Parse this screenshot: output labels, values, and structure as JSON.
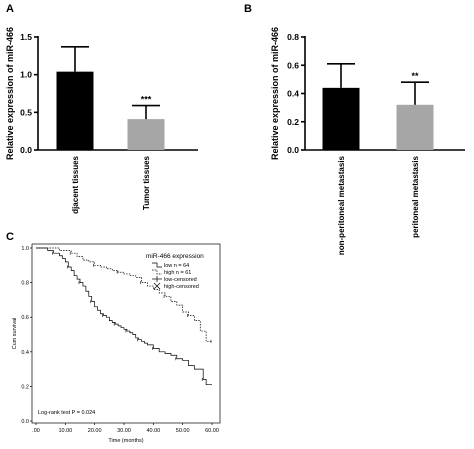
{
  "panel_labels": [
    "A",
    "B",
    "C"
  ],
  "chart_data": [
    {
      "type": "bar",
      "panel": "A",
      "ylabel": "Relative expression of miR-466",
      "categories": [
        "djacent tissues",
        "Tumor tissues"
      ],
      "values": [
        1.04,
        0.41
      ],
      "errors": [
        0.33,
        0.18
      ],
      "colors": [
        "#000000",
        "#a6a6a6"
      ],
      "ylim": [
        0,
        1.5
      ],
      "yticks": [
        "0.0",
        "0.5",
        "1.0",
        "1.5"
      ],
      "annotations": [
        "",
        "***"
      ]
    },
    {
      "type": "bar",
      "panel": "B",
      "ylabel": "Relative expression of miR-466",
      "categories": [
        "non-peritoneal metastasis",
        "peritoneal metastasis"
      ],
      "values": [
        0.44,
        0.32
      ],
      "errors": [
        0.17,
        0.16
      ],
      "colors": [
        "#000000",
        "#a6a6a6"
      ],
      "ylim": [
        0,
        0.8
      ],
      "yticks": [
        "0.0",
        "0.2",
        "0.4",
        "0.6",
        "0.8"
      ],
      "annotations": [
        "",
        "**"
      ]
    },
    {
      "type": "line",
      "panel": "C",
      "xlabel": "Time (months)",
      "ylabel": "Cum survival",
      "xlim": [
        0,
        60
      ],
      "ylim": [
        0,
        1.0
      ],
      "xticks": [
        ".00",
        "10.00",
        "20.00",
        "30.00",
        "40.00",
        "50.00",
        "60.00"
      ],
      "yticks": [
        "0.0",
        "0.2",
        "0.4",
        "0.6",
        "0.8",
        "1.0"
      ],
      "legend_title": "miR-466 expression",
      "legend_placement": "top-right",
      "legend_entries": [
        "low n = 64",
        "high n = 61",
        "low-censored",
        "high-censored"
      ],
      "annotation": "Log-rank test P = 0.024",
      "series": [
        {
          "name": "low n = 64",
          "style": "solid",
          "x": [
            0,
            4,
            6,
            8,
            9,
            10,
            11,
            12,
            13,
            14,
            15,
            16,
            17,
            18,
            19,
            20,
            21,
            22,
            23,
            24,
            25,
            26,
            27,
            28,
            29,
            30,
            31,
            32,
            33,
            34,
            35,
            36,
            37,
            38,
            40,
            42,
            44,
            46,
            48,
            50,
            52,
            54,
            57,
            58,
            60
          ],
          "y": [
            1.0,
            0.985,
            0.97,
            0.955,
            0.94,
            0.92,
            0.89,
            0.87,
            0.84,
            0.82,
            0.8,
            0.78,
            0.75,
            0.72,
            0.69,
            0.66,
            0.64,
            0.62,
            0.61,
            0.6,
            0.58,
            0.57,
            0.56,
            0.55,
            0.54,
            0.53,
            0.52,
            0.51,
            0.5,
            0.48,
            0.47,
            0.46,
            0.45,
            0.44,
            0.42,
            0.4,
            0.39,
            0.38,
            0.36,
            0.35,
            0.32,
            0.3,
            0.24,
            0.21,
            0.21
          ]
        },
        {
          "name": "high n = 61",
          "style": "dashed",
          "x": [
            0,
            8,
            12,
            14,
            16,
            18,
            20,
            22,
            24,
            26,
            28,
            30,
            32,
            34,
            36,
            38,
            40,
            42,
            44,
            46,
            48,
            50,
            52,
            54,
            56,
            58,
            60
          ],
          "y": [
            1.0,
            0.985,
            0.97,
            0.95,
            0.93,
            0.92,
            0.9,
            0.89,
            0.88,
            0.87,
            0.86,
            0.85,
            0.84,
            0.83,
            0.8,
            0.78,
            0.76,
            0.74,
            0.72,
            0.69,
            0.67,
            0.63,
            0.61,
            0.58,
            0.52,
            0.46,
            0.46
          ]
        }
      ]
    }
  ]
}
